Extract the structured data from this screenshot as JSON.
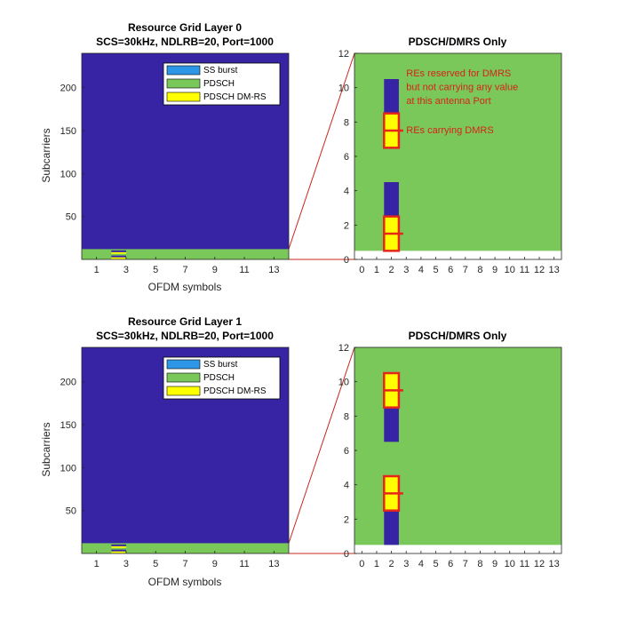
{
  "colors": {
    "grid_background": "#3624a4",
    "pdsch": "#7ac75a",
    "dmrs": "#ffff00",
    "ss_burst": "#2d96e6",
    "highlight": "#e6261a",
    "zoom_line": "#c8281e",
    "white_band": "#ffffff"
  },
  "chart_data": [
    {
      "type": "heatmap",
      "title": "Resource Grid Layer 0",
      "subtitle": "SCS=30kHz, NDLRB=20, Port=1000",
      "xlabel": "OFDM symbols",
      "ylabel": "Subcarriers",
      "xlim": [
        0,
        14
      ],
      "ylim": [
        0,
        240
      ],
      "xticks": [
        "1",
        "3",
        "5",
        "7",
        "9",
        "11",
        "13"
      ],
      "yticks": [
        "50",
        "100",
        "150",
        "200"
      ],
      "legend": {
        "placement": "top-right",
        "entries": [
          {
            "label": "SS burst",
            "color": "#2d96e6"
          },
          {
            "label": "PDSCH",
            "color": "#7ac75a"
          },
          {
            "label": "PDSCH DM-RS",
            "color": "#ffff00"
          }
        ]
      },
      "pdsch_subcarriers": [
        0,
        12
      ],
      "dmrs_symbol": 2
    },
    {
      "type": "heatmap",
      "title": "PDSCH/DMRS Only",
      "xlim": [
        -0.5,
        13.5
      ],
      "ylim": [
        0,
        12
      ],
      "xticks": [
        "0",
        "1",
        "2",
        "3",
        "4",
        "5",
        "6",
        "7",
        "8",
        "9",
        "10",
        "11",
        "12",
        "13"
      ],
      "yticks": [
        "0",
        "2",
        "4",
        "6",
        "8",
        "10",
        "12"
      ],
      "pdsch_subcarriers": [
        0.5,
        12
      ],
      "reserved_res": [
        {
          "symbol": 2,
          "from": 0.5,
          "to": 2.5
        },
        {
          "symbol": 2,
          "from": 2.5,
          "to": 4.5
        },
        {
          "symbol": 2,
          "from": 6.5,
          "to": 8.5
        },
        {
          "symbol": 2,
          "from": 8.5,
          "to": 10.5
        }
      ],
      "dmrs_boxes": [
        {
          "symbol": 2,
          "from": 0.5,
          "to": 2.5,
          "divider": 1.5
        },
        {
          "symbol": 2,
          "from": 6.5,
          "to": 8.5,
          "divider": 7.5
        }
      ],
      "annotations": [
        {
          "text": "REs reserved for DMRS",
          "x": 3.0,
          "y": 10.65
        },
        {
          "text": "but not carrying any value",
          "x": 3.0,
          "y": 9.85
        },
        {
          "text": "at this antenna Port",
          "x": 3.0,
          "y": 9.05
        },
        {
          "text": "REs carrying DMRS",
          "x": 3.0,
          "y": 7.35
        }
      ]
    },
    {
      "type": "heatmap",
      "title": "Resource Grid Layer 1",
      "subtitle": "SCS=30kHz, NDLRB=20, Port=1000",
      "xlabel": "OFDM symbols",
      "ylabel": "Subcarriers",
      "xlim": [
        0,
        14
      ],
      "ylim": [
        0,
        240
      ],
      "xticks": [
        "1",
        "3",
        "5",
        "7",
        "9",
        "11",
        "13"
      ],
      "yticks": [
        "50",
        "100",
        "150",
        "200"
      ],
      "legend": {
        "placement": "top-right",
        "entries": [
          {
            "label": "SS burst",
            "color": "#2d96e6"
          },
          {
            "label": "PDSCH",
            "color": "#7ac75a"
          },
          {
            "label": "PDSCH DM-RS",
            "color": "#ffff00"
          }
        ]
      },
      "pdsch_subcarriers": [
        0,
        12
      ],
      "dmrs_symbol": 2
    },
    {
      "type": "heatmap",
      "title": "PDSCH/DMRS Only",
      "xlim": [
        -0.5,
        13.5
      ],
      "ylim": [
        0,
        12
      ],
      "xticks": [
        "0",
        "1",
        "2",
        "3",
        "4",
        "5",
        "6",
        "7",
        "8",
        "9",
        "10",
        "11",
        "12",
        "13"
      ],
      "yticks": [
        "0",
        "2",
        "4",
        "6",
        "8",
        "10",
        "12"
      ],
      "pdsch_subcarriers": [
        0.5,
        12
      ],
      "reserved_res": [
        {
          "symbol": 2,
          "from": 0.5,
          "to": 2.5
        },
        {
          "symbol": 2,
          "from": 2.5,
          "to": 4.5
        },
        {
          "symbol": 2,
          "from": 6.5,
          "to": 8.5
        },
        {
          "symbol": 2,
          "from": 8.5,
          "to": 10.5
        }
      ],
      "dmrs_boxes": [
        {
          "symbol": 2,
          "from": 2.5,
          "to": 4.5,
          "divider": 3.5
        },
        {
          "symbol": 2,
          "from": 8.5,
          "to": 10.5,
          "divider": 9.5
        }
      ],
      "annotations": []
    }
  ]
}
